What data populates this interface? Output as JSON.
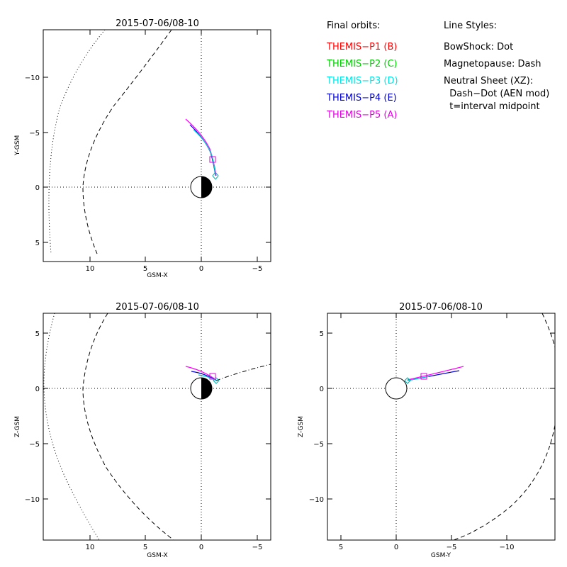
{
  "panels": {
    "xy": {
      "title": "2015-07-06/08-10",
      "xlabel": "GSM-X",
      "ylabel": "Y-GSM",
      "xticks": [
        "10",
        "5",
        "0",
        "−5"
      ],
      "yticks": [
        "−10",
        "−5",
        "0",
        "5"
      ]
    },
    "xz": {
      "title": "2015-07-06/08-10",
      "xlabel": "GSM-X",
      "ylabel": "Z-GSM",
      "xticks": [
        "10",
        "5",
        "0",
        "−5"
      ],
      "yticks": [
        "5",
        "0",
        "−5",
        "−10"
      ]
    },
    "yz": {
      "title": "2015-07-06/08-10",
      "xlabel": "GSM-Y",
      "ylabel": "Z-GSM",
      "xticks": [
        "5",
        "0",
        "−5",
        "−10"
      ],
      "yticks": [
        "5",
        "0",
        "−5",
        "−10"
      ]
    }
  },
  "legend": {
    "orbits_heading": "Final orbits:",
    "probes": [
      {
        "label": "THEMIS−P1 (B)",
        "color": "#ff0000"
      },
      {
        "label": "THEMIS−P2 (C)",
        "color": "#00cc00"
      },
      {
        "label": "THEMIS−P3 (D)",
        "color": "#00e5e5"
      },
      {
        "label": "THEMIS−P4 (E)",
        "color": "#0000cc"
      },
      {
        "label": "THEMIS−P5 (A)",
        "color": "#dd00dd"
      }
    ],
    "styles_heading": "Line Styles:",
    "styles": [
      "BowShock: Dot",
      "Magnetopause: Dash",
      "Neutral Sheet (XZ):",
      "  Dash−Dot (AEN mod)",
      "  t=interval midpoint"
    ]
  }
}
